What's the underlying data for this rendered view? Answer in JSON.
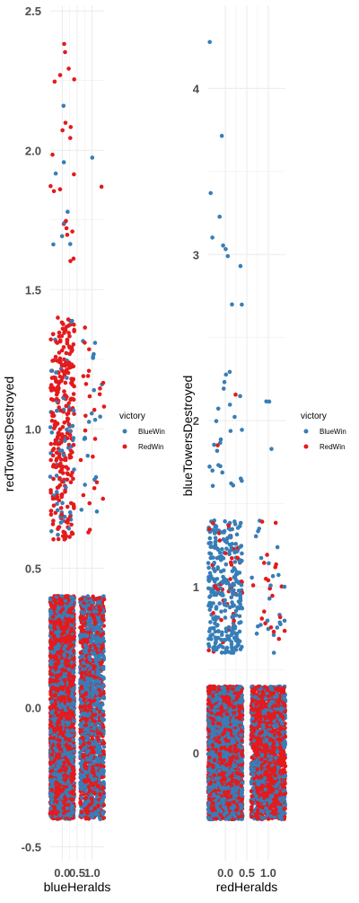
{
  "colors": {
    "BlueWin": "#377eb8",
    "RedWin": "#e41a1c",
    "grid": "#ebebeb",
    "background": "#ffffff"
  },
  "chart_data": [
    {
      "type": "scatter",
      "jitter": true,
      "title": "",
      "xlabel": "blueHeralds",
      "ylabel": "redTowersDestroyed",
      "xlim": [
        -0.4,
        1.4
      ],
      "ylim": [
        -0.55,
        2.52
      ],
      "x_ticks": [
        "0.0",
        "0.5",
        "1.0"
      ],
      "y_ticks": [
        "-0.5",
        "0.0",
        "0.5",
        "1.0",
        "1.5",
        "2.0",
        "2.5"
      ],
      "x_tick_values": [
        0,
        0.5,
        1
      ],
      "y_tick_values": [
        -0.5,
        0,
        0.5,
        1,
        1.5,
        2,
        2.5
      ],
      "grid": true,
      "legend": {
        "title": "victory",
        "position": "right",
        "entries": [
          "BlueWin",
          "RedWin"
        ]
      },
      "clusters": [
        {
          "x": 0,
          "y": 0,
          "BlueWin": 2000,
          "RedWin": 2400
        },
        {
          "x": 1,
          "y": 0,
          "BlueWin": 1000,
          "RedWin": 800
        },
        {
          "x": 0,
          "y": 1,
          "BlueWin": 60,
          "RedWin": 280
        },
        {
          "x": 1,
          "y": 1,
          "BlueWin": 20,
          "RedWin": 25
        },
        {
          "x": 0,
          "y": 2,
          "BlueWin": 8,
          "RedWin": 22
        },
        {
          "x": 1,
          "y": 2,
          "BlueWin": 1,
          "RedWin": 1
        }
      ]
    },
    {
      "type": "scatter",
      "jitter": true,
      "title": "",
      "xlabel": "redHeralds",
      "ylabel": "blueTowersDestroyed",
      "xlim": [
        -0.4,
        1.4
      ],
      "ylim": [
        -0.65,
        4.5
      ],
      "x_ticks": [
        "0.0",
        "0.5",
        "1.0"
      ],
      "y_ticks": [
        "0",
        "1",
        "2",
        "3",
        "4"
      ],
      "x_tick_values": [
        0,
        0.5,
        1
      ],
      "y_tick_values": [
        0,
        1,
        2,
        3,
        4
      ],
      "grid": true,
      "legend": {
        "title": "victory",
        "position": "right",
        "entries": [
          "BlueWin",
          "RedWin"
        ]
      },
      "clusters": [
        {
          "x": 0,
          "y": 0,
          "BlueWin": 2400,
          "RedWin": 2000
        },
        {
          "x": 1,
          "y": 0,
          "BlueWin": 700,
          "RedWin": 1100
        },
        {
          "x": 0,
          "y": 1,
          "BlueWin": 300,
          "RedWin": 40
        },
        {
          "x": 1,
          "y": 1,
          "BlueWin": 25,
          "RedWin": 20
        },
        {
          "x": 0,
          "y": 2,
          "BlueWin": 25,
          "RedWin": 2
        },
        {
          "x": 1,
          "y": 2,
          "BlueWin": 3,
          "RedWin": 0
        },
        {
          "x": 0,
          "y": 3,
          "BlueWin": 9,
          "RedWin": 0
        },
        {
          "x": 0,
          "y": 4,
          "BlueWin": 2,
          "RedWin": 0
        }
      ]
    }
  ]
}
